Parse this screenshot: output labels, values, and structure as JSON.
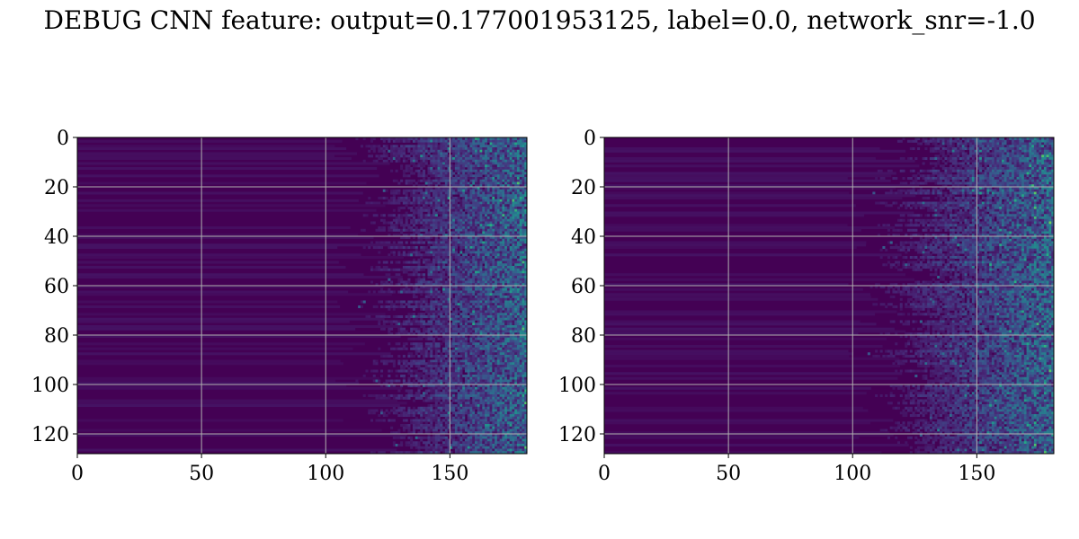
{
  "title": "DEBUG CNN feature: output=0.177001953125, label=0.0, network_snr=-1.0",
  "chart_data": [
    {
      "type": "heatmap",
      "colormap": "viridis",
      "grid": true,
      "x_ticks": [
        0,
        50,
        100,
        150
      ],
      "y_ticks": [
        0,
        20,
        40,
        60,
        80,
        100,
        120
      ],
      "xlim": [
        0,
        181
      ],
      "ylim": [
        128,
        0
      ],
      "x_tick_labels": [
        "0",
        "50",
        "100",
        "150"
      ],
      "y_tick_labels": [
        "0",
        "20",
        "40",
        "60",
        "80",
        "100",
        "120"
      ]
    },
    {
      "type": "heatmap",
      "colormap": "viridis",
      "grid": true,
      "x_ticks": [
        0,
        50,
        100,
        150
      ],
      "y_ticks": [
        0,
        20,
        40,
        60,
        80,
        100,
        120
      ],
      "xlim": [
        0,
        181
      ],
      "ylim": [
        128,
        0
      ],
      "x_tick_labels": [
        "0",
        "50",
        "100",
        "150"
      ],
      "y_tick_labels": [
        "0",
        "20",
        "40",
        "60",
        "80",
        "100",
        "120"
      ]
    }
  ]
}
